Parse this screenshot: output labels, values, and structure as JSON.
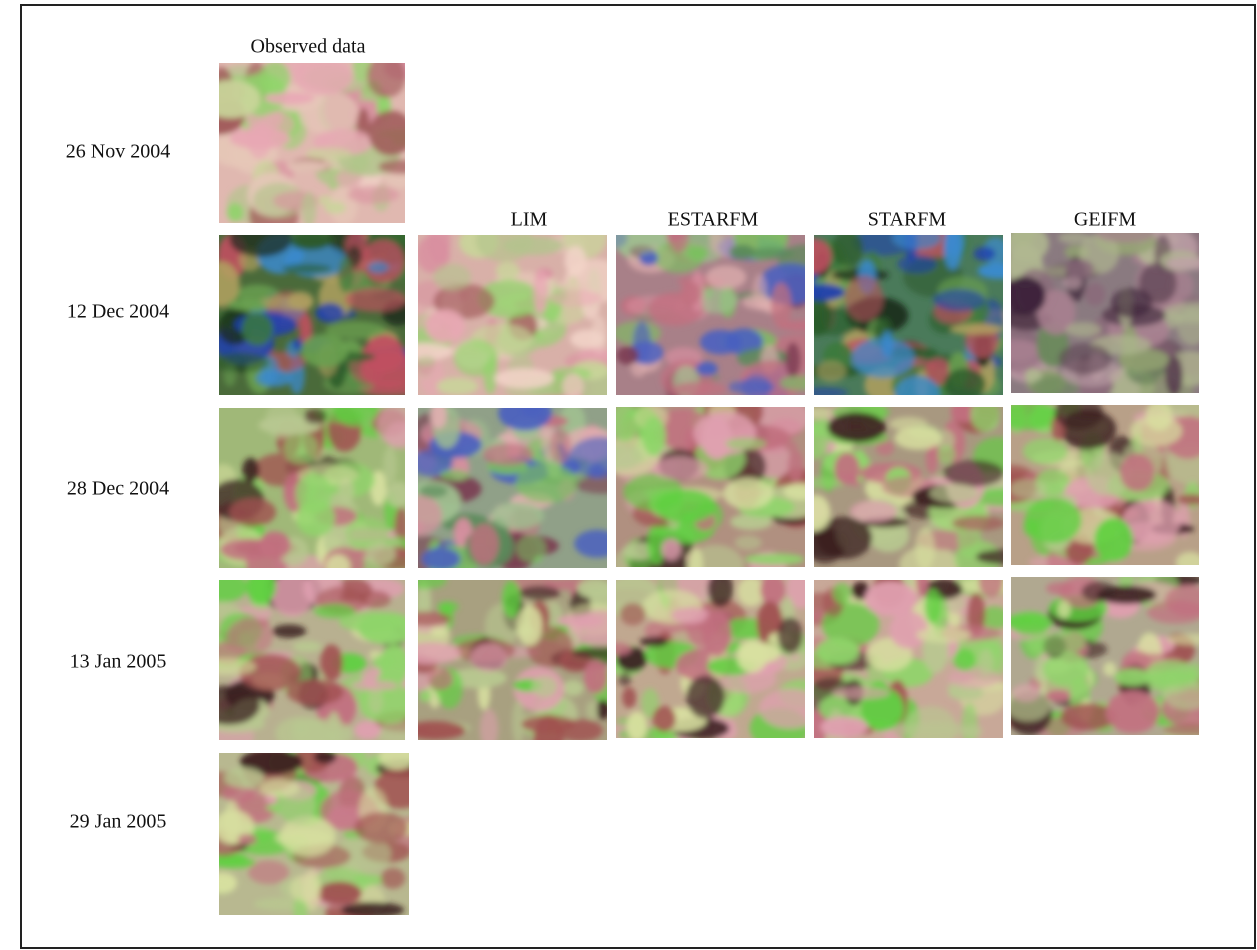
{
  "column_headers": {
    "observed": "Observed data",
    "methods": [
      "LIM",
      "ESTARFM",
      "STARFM",
      "GEIFM"
    ]
  },
  "row_labels": [
    "26 Nov 2004",
    "12 Dec 2004",
    "28 Dec 2004",
    "13 Jan 2005",
    "29 Jan 2005"
  ]
}
